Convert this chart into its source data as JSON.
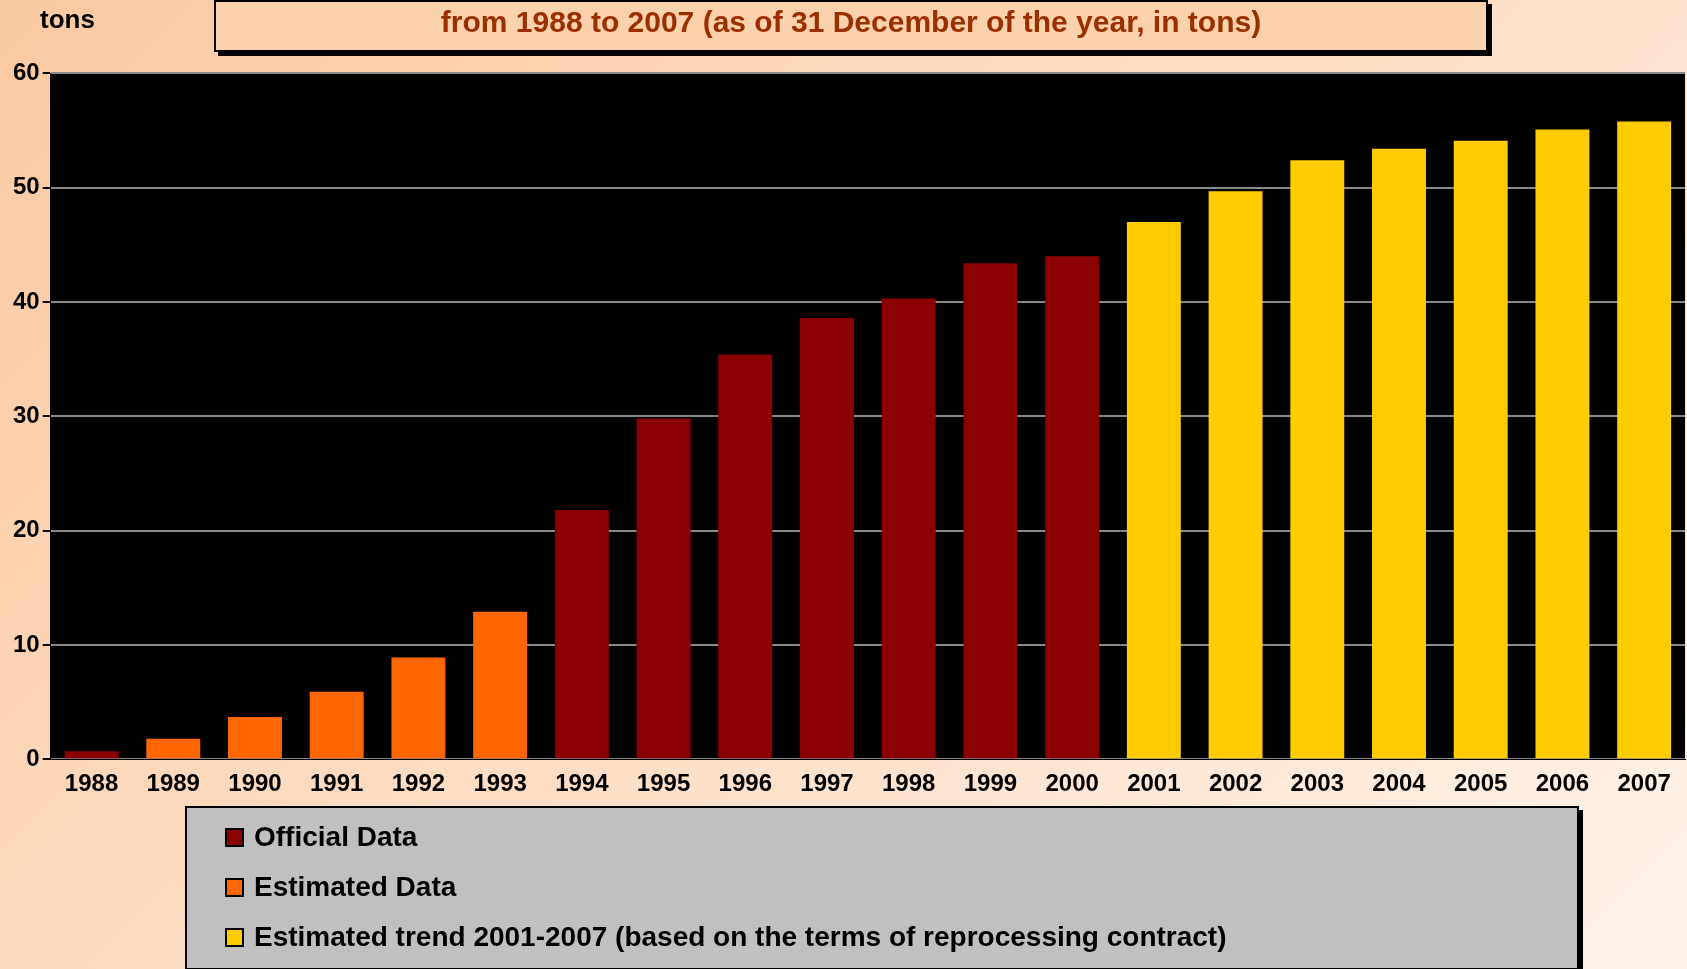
{
  "chart_data": {
    "type": "bar",
    "title": "from 1988 to 2007 (as of 31 December of the year, in tons)",
    "ylabel": "tons",
    "categories": [
      "1988",
      "1989",
      "1990",
      "1991",
      "1992",
      "1993",
      "1994",
      "1995",
      "1996",
      "1997",
      "1998",
      "1999",
      "2000",
      "2001",
      "2002",
      "2003",
      "2004",
      "2005",
      "2006",
      "2007"
    ],
    "series": [
      {
        "name": "Official Data",
        "color": "#8b0000",
        "values": [
          0.7,
          null,
          null,
          null,
          null,
          null,
          21.8,
          29.8,
          35.4,
          38.6,
          40.3,
          43.4,
          44.0,
          null,
          null,
          null,
          null,
          null,
          null,
          null
        ]
      },
      {
        "name": "Estimated Data",
        "color": "#ff6600",
        "values": [
          null,
          1.8,
          3.7,
          5.9,
          8.9,
          12.9,
          null,
          null,
          null,
          null,
          null,
          null,
          null,
          null,
          null,
          null,
          null,
          null,
          null,
          null
        ]
      },
      {
        "name": "Estimated trend 2001-2007 (based on the terms of reprocessing contract)",
        "color": "#ffcc00",
        "values": [
          null,
          null,
          null,
          null,
          null,
          null,
          null,
          null,
          null,
          null,
          null,
          null,
          null,
          47.0,
          49.7,
          52.4,
          53.4,
          54.1,
          55.1,
          55.8
        ]
      }
    ],
    "ylim": [
      0,
      60
    ],
    "yticks": [
      0,
      10,
      20,
      30,
      40,
      50,
      60
    ],
    "grid": "y",
    "legend": "bottom"
  }
}
